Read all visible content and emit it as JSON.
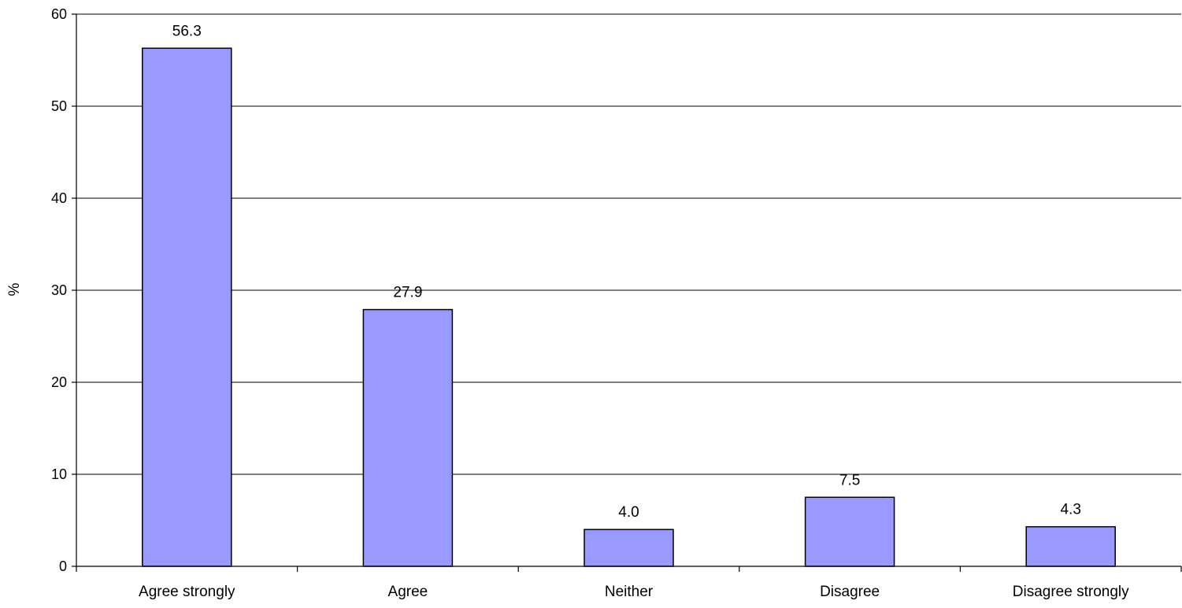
{
  "chart_data": {
    "type": "bar",
    "title": "",
    "xlabel": "",
    "ylabel": "%",
    "categories": [
      "Agree strongly",
      "Agree",
      "Neither",
      "Disagree",
      "Disagree strongly"
    ],
    "values": [
      56.3,
      27.9,
      4.0,
      7.5,
      4.3
    ],
    "value_labels": [
      "56.3",
      "27.9",
      "4.0",
      "7.5",
      "4.3"
    ],
    "ylim": [
      0,
      60
    ],
    "yticks": [
      0,
      10,
      20,
      30,
      40,
      50,
      60
    ],
    "grid": true,
    "legend": "none",
    "bar_color": "#9999ff",
    "bar_edge_color": "#000000"
  }
}
